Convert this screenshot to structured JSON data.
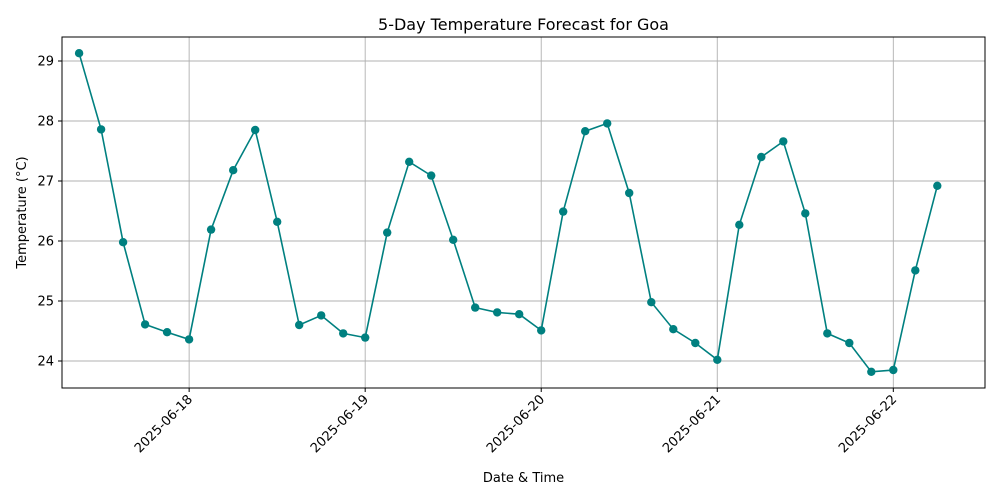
{
  "chart_data": {
    "type": "line",
    "title": "5-Day Temperature Forecast for Goa",
    "xlabel": "Date & Time",
    "ylabel": "Temperature (°C)",
    "x_tick_labels": [
      "2025-06-18",
      "2025-06-19",
      "2025-06-20",
      "2025-06-21",
      "2025-06-22"
    ],
    "y_tick_labels": [
      "24",
      "25",
      "26",
      "27",
      "28",
      "29"
    ],
    "ylim": [
      23.55,
      29.4
    ],
    "xlim": [
      "2025-06-17 06:40",
      "2025-06-22 12:30"
    ],
    "grid": true,
    "color": "#008080",
    "marker": "circle",
    "series": [
      {
        "x": [
          "2025-06-17 09:00",
          "2025-06-17 12:00",
          "2025-06-17 15:00",
          "2025-06-17 18:00",
          "2025-06-17 21:00",
          "2025-06-18 00:00",
          "2025-06-18 03:00",
          "2025-06-18 06:00",
          "2025-06-18 09:00",
          "2025-06-18 12:00",
          "2025-06-18 15:00",
          "2025-06-18 18:00",
          "2025-06-18 21:00",
          "2025-06-19 00:00",
          "2025-06-19 03:00",
          "2025-06-19 06:00",
          "2025-06-19 09:00",
          "2025-06-19 12:00",
          "2025-06-19 15:00",
          "2025-06-19 18:00",
          "2025-06-19 21:00",
          "2025-06-20 00:00",
          "2025-06-20 03:00",
          "2025-06-20 06:00",
          "2025-06-20 09:00",
          "2025-06-20 12:00",
          "2025-06-20 15:00",
          "2025-06-20 18:00",
          "2025-06-20 21:00",
          "2025-06-21 00:00",
          "2025-06-21 03:00",
          "2025-06-21 06:00",
          "2025-06-21 09:00",
          "2025-06-21 12:00",
          "2025-06-21 15:00",
          "2025-06-21 18:00",
          "2025-06-21 21:00",
          "2025-06-22 00:00",
          "2025-06-22 03:00",
          "2025-06-22 06:00"
        ],
        "y": [
          29.13,
          27.86,
          25.98,
          24.61,
          24.48,
          24.36,
          26.19,
          27.18,
          27.85,
          26.32,
          24.6,
          24.76,
          24.46,
          24.39,
          26.14,
          27.32,
          27.09,
          26.02,
          24.89,
          24.81,
          24.78,
          24.51,
          26.49,
          27.83,
          27.96,
          26.8,
          24.98,
          24.53,
          24.3,
          24.02,
          26.27,
          27.4,
          27.66,
          26.46,
          24.46,
          24.3,
          23.82,
          23.85,
          25.51,
          26.92
        ]
      }
    ]
  }
}
